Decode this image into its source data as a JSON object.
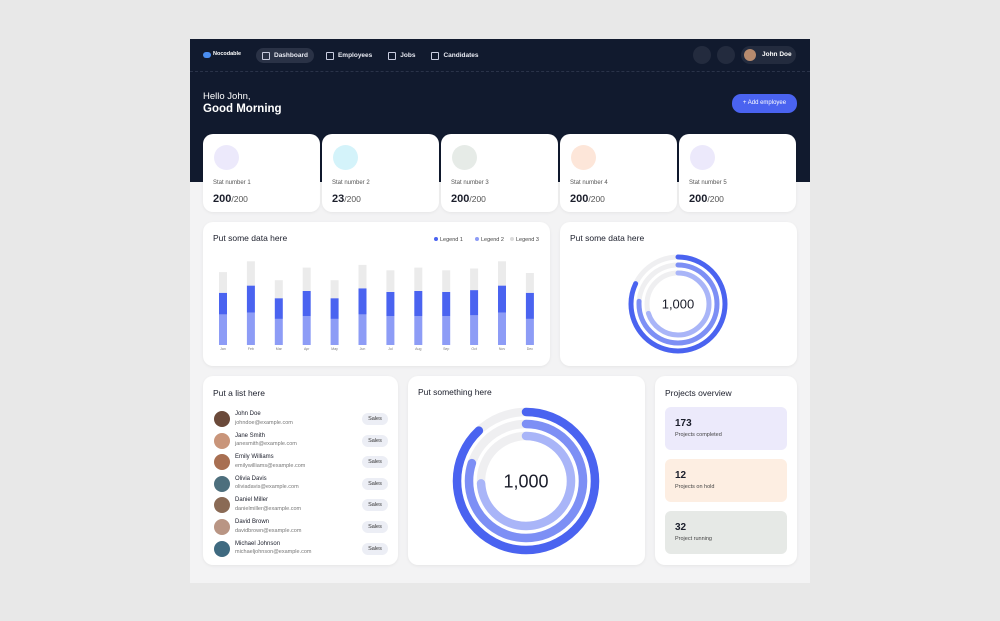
{
  "nav": {
    "brand": "Nocodable",
    "items": [
      "Dashboard",
      "Employees",
      "Jobs",
      "Candidates"
    ],
    "user": "John Doe"
  },
  "header": {
    "greeting": "Hello John,",
    "title": "Good Morning",
    "button": "+ Add employee"
  },
  "stats": [
    {
      "label": "Stat number 1",
      "value": 200,
      "total": "/200",
      "color": "#ece9fb"
    },
    {
      "label": "Stat number 2",
      "value": 23,
      "total": "/200",
      "color": "#d4f3fa"
    },
    {
      "label": "Stat number 3",
      "value": 200,
      "total": "/200",
      "color": "#e6ebe7"
    },
    {
      "label": "Stat number 4",
      "value": 200,
      "total": "/200",
      "color": "#fde6d9"
    },
    {
      "label": "Stat number 5",
      "value": 200,
      "total": "/200",
      "color": "#ece9fb"
    }
  ],
  "chart_data": [
    {
      "type": "bar",
      "title": "Put some data here",
      "stacked": true,
      "categories": [
        "Jan",
        "Feb",
        "Mar",
        "Apr",
        "May",
        "Jun",
        "Jul",
        "Aug",
        "Sep",
        "Oct",
        "Nov",
        "Dec"
      ],
      "series": [
        {
          "name": "Legend 1",
          "color": "#4a63f0",
          "values": [
            24,
            30,
            23,
            28,
            23,
            29,
            27,
            28,
            27,
            28,
            30,
            29
          ]
        },
        {
          "name": "Legend 2",
          "color": "#8d9cf6",
          "values": [
            34,
            36,
            29,
            32,
            29,
            34,
            32,
            32,
            32,
            33,
            36,
            29
          ]
        },
        {
          "name": "Legend 3",
          "color": "#ebebeb",
          "values": [
            23,
            27,
            20,
            26,
            20,
            26,
            24,
            26,
            24,
            24,
            27,
            22
          ]
        }
      ],
      "ylim": [
        0,
        100
      ]
    },
    {
      "type": "radial",
      "title": "Put some data here",
      "center_label": "1,000",
      "values": [
        82,
        76,
        70
      ],
      "colors": [
        "#4a63f0",
        "#7d8ff5",
        "#a9b5f8"
      ]
    },
    {
      "type": "radial",
      "title": "Put something here",
      "center_label": "1,000",
      "values": [
        88,
        80,
        74
      ],
      "colors": [
        "#4a63f0",
        "#7d8ff5",
        "#a9b5f8"
      ]
    }
  ],
  "list": {
    "title": "Put a list here",
    "people": [
      {
        "name": "John Doe",
        "email": "johndoe@example.com",
        "tag": "Sales"
      },
      {
        "name": "Jane Smith",
        "email": "janesmith@example.com",
        "tag": "Sales"
      },
      {
        "name": "Emily Williams",
        "email": "emilywilliams@example.com",
        "tag": "Sales"
      },
      {
        "name": "Olivia Davis",
        "email": "oliviadavis@example.com",
        "tag": "Sales"
      },
      {
        "name": "Daniel Miller",
        "email": "danielmiller@example.com",
        "tag": "Sales"
      },
      {
        "name": "David Brown",
        "email": "davidbrown@example.com",
        "tag": "Sales"
      },
      {
        "name": "Michael Johnson",
        "email": "michaeljohnson@example.com",
        "tag": "Sales"
      }
    ]
  },
  "projects": {
    "title": "Projects overview",
    "items": [
      {
        "value": 173,
        "label": "Projects completed",
        "color": "#eceafb"
      },
      {
        "value": 12,
        "label": "Projects on hold",
        "color": "#fdeee2"
      },
      {
        "value": 32,
        "label": "Project running",
        "color": "#e6e9e6"
      }
    ]
  }
}
